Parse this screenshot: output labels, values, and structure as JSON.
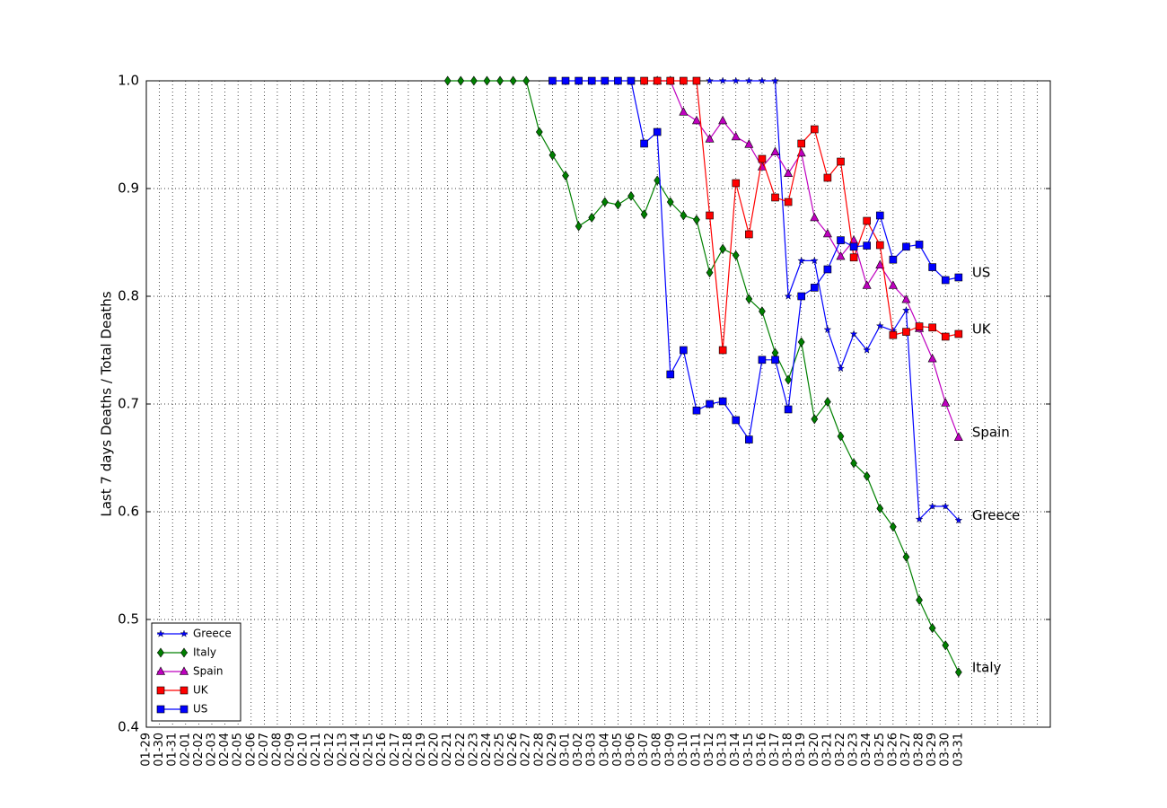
{
  "chart_data": {
    "type": "line",
    "ylabel": "Last 7 days Deaths / Total Deaths",
    "categories": [
      "01-29",
      "01-30",
      "01-31",
      "02-01",
      "02-02",
      "02-03",
      "02-04",
      "02-05",
      "02-06",
      "02-07",
      "02-08",
      "02-09",
      "02-10",
      "02-11",
      "02-12",
      "02-13",
      "02-14",
      "02-15",
      "02-16",
      "02-17",
      "02-18",
      "02-19",
      "02-20",
      "02-21",
      "02-22",
      "02-23",
      "02-24",
      "02-25",
      "02-26",
      "02-27",
      "02-28",
      "02-29",
      "03-01",
      "03-02",
      "03-03",
      "03-04",
      "03-05",
      "03-06",
      "03-07",
      "03-08",
      "03-09",
      "03-10",
      "03-11",
      "03-12",
      "03-13",
      "03-14",
      "03-15",
      "03-16",
      "03-17",
      "03-18",
      "03-19",
      "03-20",
      "03-21",
      "03-22",
      "03-23",
      "03-24",
      "03-25",
      "03-26",
      "03-27",
      "03-28",
      "03-29",
      "03-30",
      "03-31"
    ],
    "xlim": [
      0,
      69
    ],
    "ylim": [
      0.4,
      1
    ],
    "yticks": [
      0.4,
      0.5,
      0.6,
      0.7,
      0.8,
      0.9,
      {
        "value": 1,
        "label": "1.0"
      }
    ],
    "grid": true,
    "legend": "lower left",
    "series": [
      {
        "name": "Greece",
        "color": "#0000ff",
        "marker": "star",
        "values": [
          null,
          null,
          null,
          null,
          null,
          null,
          null,
          null,
          null,
          null,
          null,
          null,
          null,
          null,
          null,
          null,
          null,
          null,
          null,
          null,
          null,
          null,
          null,
          null,
          null,
          null,
          null,
          null,
          null,
          null,
          null,
          null,
          null,
          null,
          null,
          null,
          null,
          null,
          null,
          null,
          null,
          null,
          null,
          1,
          1,
          1,
          1,
          1,
          1,
          0.8,
          0.833,
          0.833,
          0.769,
          0.733,
          0.765,
          0.75,
          0.7725,
          0.768,
          0.787,
          0.593,
          0.605,
          0.605,
          0.592
        ]
      },
      {
        "name": "Italy",
        "color": "#008000",
        "marker": "diamond",
        "values": [
          null,
          null,
          null,
          null,
          null,
          null,
          null,
          null,
          null,
          null,
          null,
          null,
          null,
          null,
          null,
          null,
          null,
          null,
          null,
          null,
          null,
          null,
          null,
          1,
          1,
          1,
          1,
          1,
          1,
          1,
          0.9525,
          0.931,
          0.912,
          0.865,
          0.873,
          0.8875,
          0.885,
          0.893,
          0.876,
          0.9075,
          0.8875,
          0.875,
          0.871,
          0.822,
          0.844,
          0.838,
          0.7975,
          0.786,
          0.7475,
          0.7225,
          0.7575,
          0.686,
          0.702,
          0.67,
          0.645,
          0.633,
          0.603,
          0.586,
          0.558,
          0.518,
          0.492,
          0.476,
          0.451
        ]
      },
      {
        "name": "Spain",
        "color": "#bf00bf",
        "marker": "triangle",
        "values": [
          null,
          null,
          null,
          null,
          null,
          null,
          null,
          null,
          null,
          null,
          null,
          null,
          null,
          null,
          null,
          null,
          null,
          null,
          null,
          null,
          null,
          null,
          null,
          null,
          null,
          null,
          null,
          null,
          null,
          null,
          null,
          null,
          null,
          null,
          null,
          null,
          null,
          null,
          null,
          1,
          1,
          0.971,
          0.963,
          0.946,
          0.963,
          0.948,
          0.941,
          0.92,
          0.934,
          0.914,
          0.933,
          0.873,
          0.858,
          0.837,
          0.852,
          0.81,
          0.829,
          0.81,
          0.797,
          0.77,
          0.742,
          0.701,
          0.669
        ]
      },
      {
        "name": "UK",
        "color": "#ff0000",
        "marker": "square",
        "values": [
          null,
          null,
          null,
          null,
          null,
          null,
          null,
          null,
          null,
          null,
          null,
          null,
          null,
          null,
          null,
          null,
          null,
          null,
          null,
          null,
          null,
          null,
          null,
          null,
          null,
          null,
          null,
          null,
          null,
          null,
          null,
          null,
          null,
          null,
          null,
          null,
          null,
          null,
          1,
          1,
          1,
          1,
          1,
          0.875,
          0.75,
          0.905,
          0.8575,
          0.9275,
          0.8917,
          0.8875,
          0.9417,
          0.955,
          0.91,
          0.925,
          0.836,
          0.87,
          0.8475,
          0.764,
          0.767,
          0.772,
          0.771,
          0.7625,
          0.765
        ]
      },
      {
        "name": "US",
        "color": "#0000ff",
        "marker": "square",
        "values": [
          null,
          null,
          null,
          null,
          null,
          null,
          null,
          null,
          null,
          null,
          null,
          null,
          null,
          null,
          null,
          null,
          null,
          null,
          null,
          null,
          null,
          null,
          null,
          null,
          null,
          null,
          null,
          null,
          null,
          null,
          null,
          1,
          1,
          1,
          1,
          1,
          1,
          1,
          0.9417,
          0.9525,
          0.7275,
          0.75,
          0.694,
          0.7,
          0.7025,
          0.685,
          0.667,
          0.741,
          0.741,
          0.695,
          0.8,
          0.808,
          0.825,
          0.852,
          0.846,
          0.847,
          0.875,
          0.834,
          0.846,
          0.848,
          0.827,
          0.815,
          0.8175
        ]
      }
    ]
  }
}
